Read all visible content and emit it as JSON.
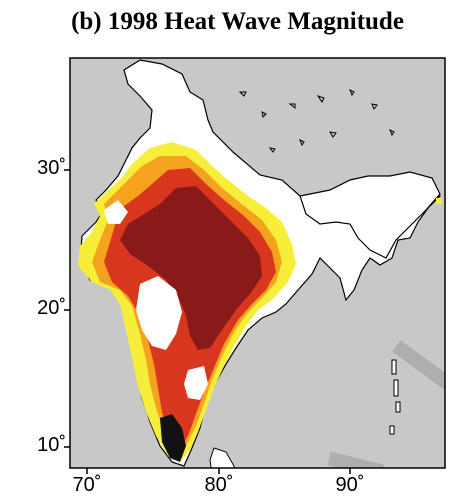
{
  "title": "(b) 1998 Heat Wave Magnitude",
  "axes": {
    "lat_ticks": [
      "30˚",
      "20˚",
      "10˚"
    ],
    "lon_ticks": [
      "70˚",
      "80˚",
      "90˚"
    ]
  },
  "legend_colors": {
    "land_no_data": "#ffffff",
    "ocean": "#c8c8c8",
    "low": "#f7ee3a",
    "moderate": "#f5a21e",
    "high": "#d8371e",
    "very_high": "#8a1a1a",
    "extreme": "#111111"
  }
}
